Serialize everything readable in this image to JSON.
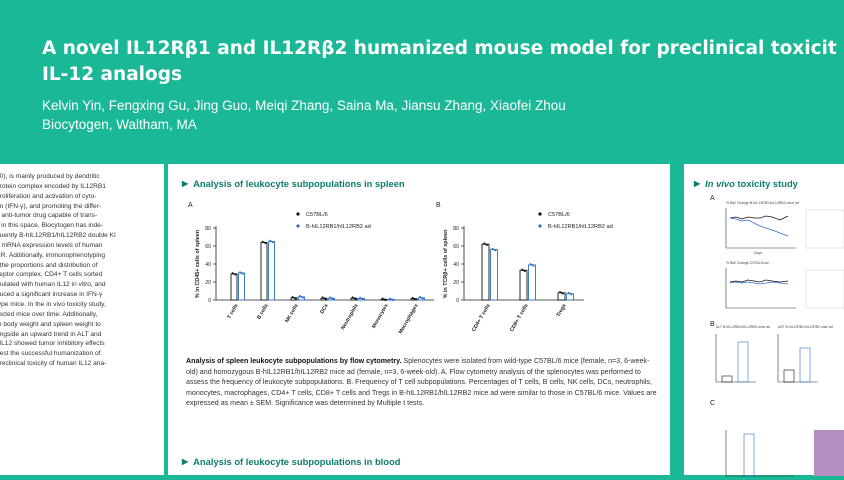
{
  "poster": {
    "title_line1": "A novel IL12Rβ1 and IL12Rβ2 humanized mouse model for preclinical toxicit",
    "title_line2": "IL-12 analogs",
    "authors": "Kelvin Yin, Fengxing Gu, Jing Guo, Meiqi Zhang, Saina Ma, Jiansu Zhang, Xiaofei Zhou",
    "affiliation": "Biocytogen, Waltham, MA"
  },
  "left_panel": {
    "lines": [
      "40), is mainly produced by dendritic",
      "protein complex encoded by IL12RB1",
      "proliferation and activation of cyto-",
      "on (IFN-γ), and promoting the differ-",
      "g anti-tumor drug capable of trans-",
      "y in this space, Biocytogen has inde-",
      "quently B-hIL12RB1/hIL12RB2 double KI",
      "e mRNA expression levels of human",
      "CR. Additionally, immunophenotyping",
      "t the proportions and distribution of",
      "ceptor complex, CD4+ T cells sorted",
      "mulated with human IL12 in vitro, and",
      "duced a significant increase in IFN-γ",
      "type mice. In the in vivo toxicity study,",
      "rected mice over time. Additionally,",
      "to body weight and spleen weight to",
      "ongside an upward trend in ALT and",
      "l IL12 showed tumor inhibitory effects",
      "gest the successful humanization of",
      "preclinical toxicity of human IL12 ana-"
    ]
  },
  "spleen_section": {
    "title": "Analysis of leukocyte subpopulations in spleen",
    "caption_bold": "Analysis of spleen leukocyte subpopulations by flow cytometry.",
    "caption_body": " Splenocytes were isolated from wild-type C57BL/6 mice (female, n=3, 6-week-old) and homozygous B-hIL12RB1/hIL12RB2 mice ad (female, n=3, 6-week-old). A. Flow cytometry analysis of the splenocytes was performed to assess the frequency of leukocyte subpopulations. B. Frequency of T cell subpopulations. Percentages of T cells, B cells, NK cells, DCs, neutrophils, monocytes, macrophages, CD4+ T cells, CD8+ T cells and Tregs in B-hIL12RB1/hIL12RB2 mice ad were similar to those in C57BL/6 mice. Values are expressed as mean ± SEM. Significance was determined by Multiple t tests."
  },
  "blood_section": {
    "title": "Analysis of leukocyte subpopulations in blood"
  },
  "toxicity_section": {
    "title_italic": "In vivo",
    "title_rest": " toxicity study"
  },
  "colors": {
    "background": "#1ab896",
    "accent": "#0b7f6c",
    "series_wt": "#111111",
    "series_hum": "#2f6fc4"
  },
  "chart_data": [
    {
      "type": "bar",
      "panel_label": "A",
      "ylabel": "% in CD45+ cells of spleen",
      "ylim": [
        0,
        80
      ],
      "yticks": [
        0,
        20,
        40,
        60,
        80
      ],
      "categories": [
        "T cells",
        "B cells",
        "NK cells",
        "DCs",
        "Neutrophils",
        "Monocytes",
        "Macrophages"
      ],
      "series": [
        {
          "name": "C57BL/6",
          "values": [
            29,
            64,
            2.5,
            2,
            2,
            0.8,
            1.5
          ]
        },
        {
          "name": "B-hIL12RB1/hIL12RB2 ad",
          "values": [
            30,
            65,
            3.5,
            2,
            1.8,
            0.7,
            2.5
          ]
        }
      ]
    },
    {
      "type": "bar",
      "panel_label": "B",
      "ylabel": "% in TCRβ+ cells of spleen",
      "ylim": [
        0,
        80
      ],
      "yticks": [
        0,
        20,
        40,
        60,
        80
      ],
      "categories": [
        "CD4+ T cells",
        "CD8+ T cells",
        "Tregs"
      ],
      "series": [
        {
          "name": "C57BL/6",
          "values": [
            62,
            33,
            8
          ]
        },
        {
          "name": "B-hIL12RB1/hIL12RB2 ad",
          "values": [
            56,
            39,
            7
          ]
        }
      ]
    }
  ],
  "toxicity_minis": {
    "a_label": "A",
    "b_label": "B",
    "c_label": "C",
    "a_top_title": "% BW Change B-hIL12RB1/hIL12RB2 mice ad",
    "a_bottom_title": "% BW Change C57BL/6 ad",
    "b_title_left": "ALT B-hIL12RB1/hIL12RB2 mice ad",
    "b_title_right": "AST B-hIL12RB1/hIL12RB2 mice ad",
    "a_xlabel": "Days"
  }
}
